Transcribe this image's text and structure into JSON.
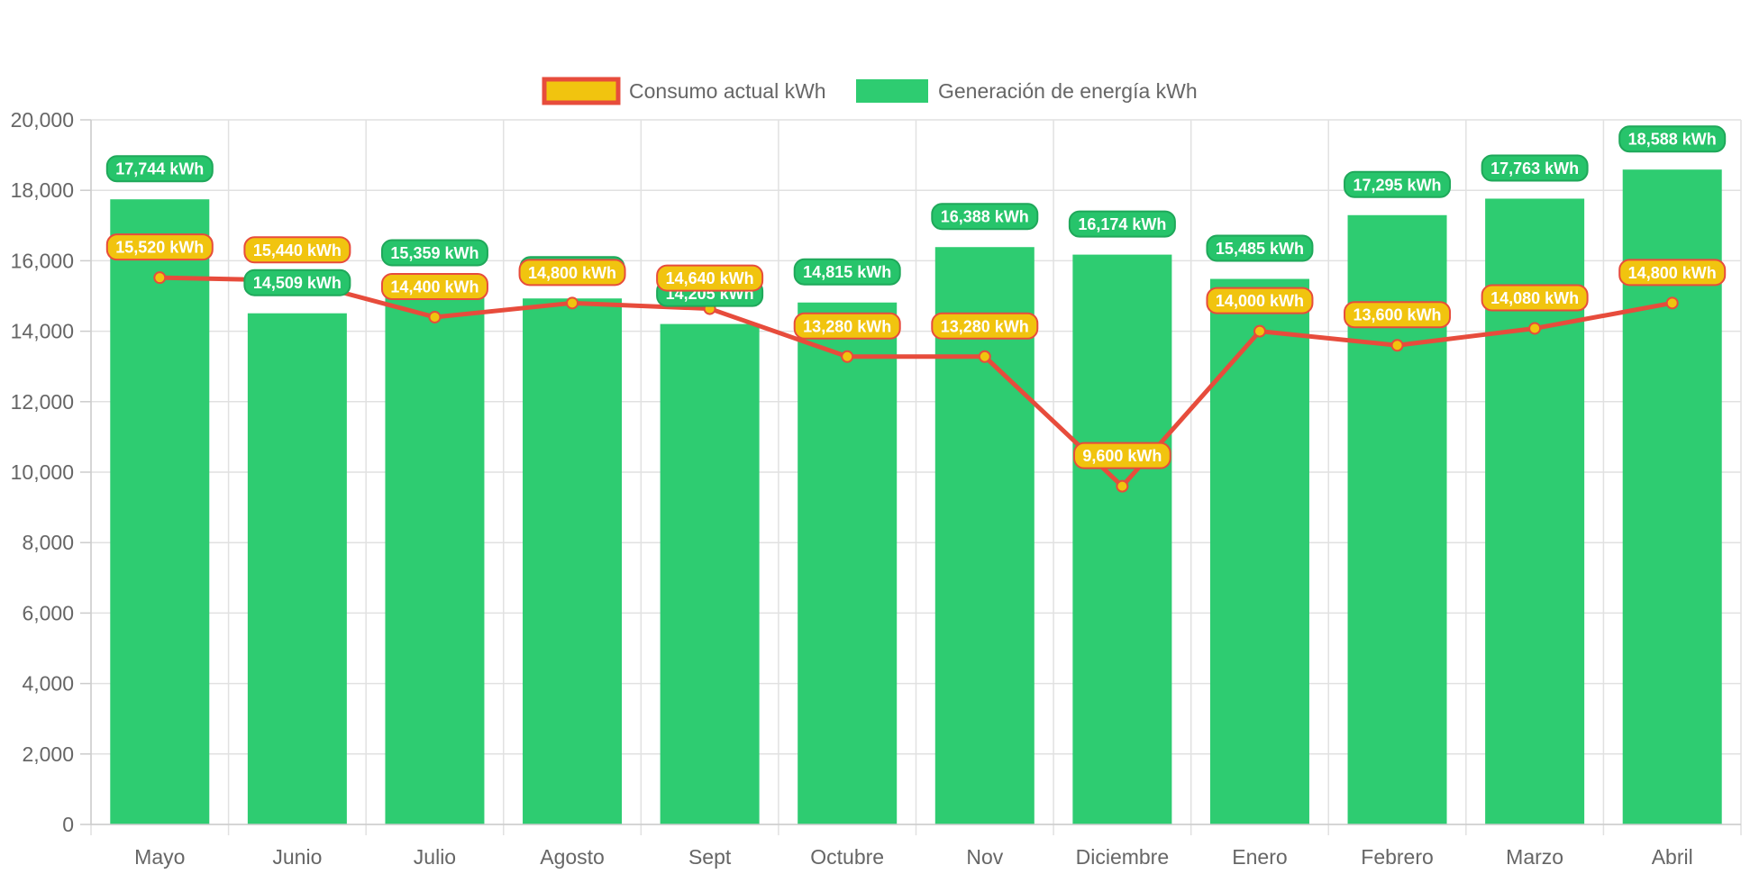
{
  "chart_data": {
    "type": "bar",
    "categories": [
      "Mayo",
      "Junio",
      "Julio",
      "Agosto",
      "Sept",
      "Octubre",
      "Nov",
      "Diciembre",
      "Enero",
      "Febrero",
      "Marzo",
      "Abril"
    ],
    "ylim": [
      0,
      20000
    ],
    "yticks": [
      0,
      2000,
      4000,
      6000,
      8000,
      10000,
      12000,
      14000,
      16000,
      18000,
      20000
    ],
    "ytick_labels": [
      "0",
      "2,000",
      "4,000",
      "6,000",
      "8,000",
      "10,000",
      "12,000",
      "14,000",
      "16,000",
      "18,000",
      "20,000"
    ],
    "grid": true,
    "legend_position": "top-center",
    "series": [
      {
        "name": "Consumo actual kWh",
        "type": "line",
        "color": "#e74c3c",
        "fill": "#f1c40f",
        "values": [
          15520,
          15440,
          14400,
          14800,
          14640,
          13280,
          13280,
          9600,
          14000,
          13600,
          14080,
          14800
        ],
        "labels": [
          "15,520 kWh",
          "15,440 kWh",
          "14,400 kWh",
          "14,800 kWh",
          "14,640 kWh",
          "13,280 kWh",
          "13,280 kWh",
          "9,600 kWh",
          "14,000 kWh",
          "13,600 kWh",
          "14,080 kWh",
          "14,800 kWh"
        ]
      },
      {
        "name": "Generación de energía kWh",
        "type": "bar",
        "color": "#2ecc71",
        "values": [
          17744,
          14509,
          15359,
          14930,
          14205,
          14815,
          16388,
          16174,
          15485,
          17295,
          17763,
          18588
        ],
        "labels": [
          "17,744 kWh",
          "14,509 kWh",
          "15,359 kWh",
          "",
          "14,205 kWh",
          "14,815 kWh",
          "16,388 kWh",
          "16,174 kWh",
          "15,485 kWh",
          "17,295 kWh",
          "17,763 kWh",
          "18,588 kWh"
        ]
      }
    ]
  }
}
